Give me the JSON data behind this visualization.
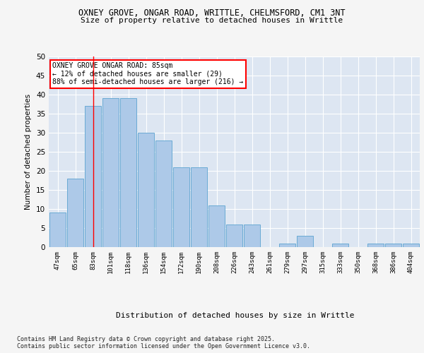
{
  "title1": "OXNEY GROVE, ONGAR ROAD, WRITTLE, CHELMSFORD, CM1 3NT",
  "title2": "Size of property relative to detached houses in Writtle",
  "xlabel": "Distribution of detached houses by size in Writtle",
  "ylabel": "Number of detached properties",
  "categories": [
    "47sqm",
    "65sqm",
    "83sqm",
    "101sqm",
    "118sqm",
    "136sqm",
    "154sqm",
    "172sqm",
    "190sqm",
    "208sqm",
    "226sqm",
    "243sqm",
    "261sqm",
    "279sqm",
    "297sqm",
    "315sqm",
    "333sqm",
    "350sqm",
    "368sqm",
    "386sqm",
    "404sqm"
  ],
  "values": [
    9,
    18,
    37,
    39,
    39,
    30,
    28,
    21,
    21,
    11,
    6,
    6,
    0,
    1,
    3,
    0,
    1,
    0,
    1,
    1,
    1
  ],
  "bar_color": "#adc9e8",
  "bar_edge_color": "#6aaad4",
  "background_color": "#dde6f2",
  "grid_color": "#ffffff",
  "redline_index": 2,
  "annotation_text": "OXNEY GROVE ONGAR ROAD: 85sqm\n← 12% of detached houses are smaller (29)\n88% of semi-detached houses are larger (216) →",
  "footnote": "Contains HM Land Registry data © Crown copyright and database right 2025.\nContains public sector information licensed under the Open Government Licence v3.0.",
  "ylim": [
    0,
    50
  ],
  "yticks": [
    0,
    5,
    10,
    15,
    20,
    25,
    30,
    35,
    40,
    45,
    50
  ],
  "fig_bg": "#f5f5f5"
}
